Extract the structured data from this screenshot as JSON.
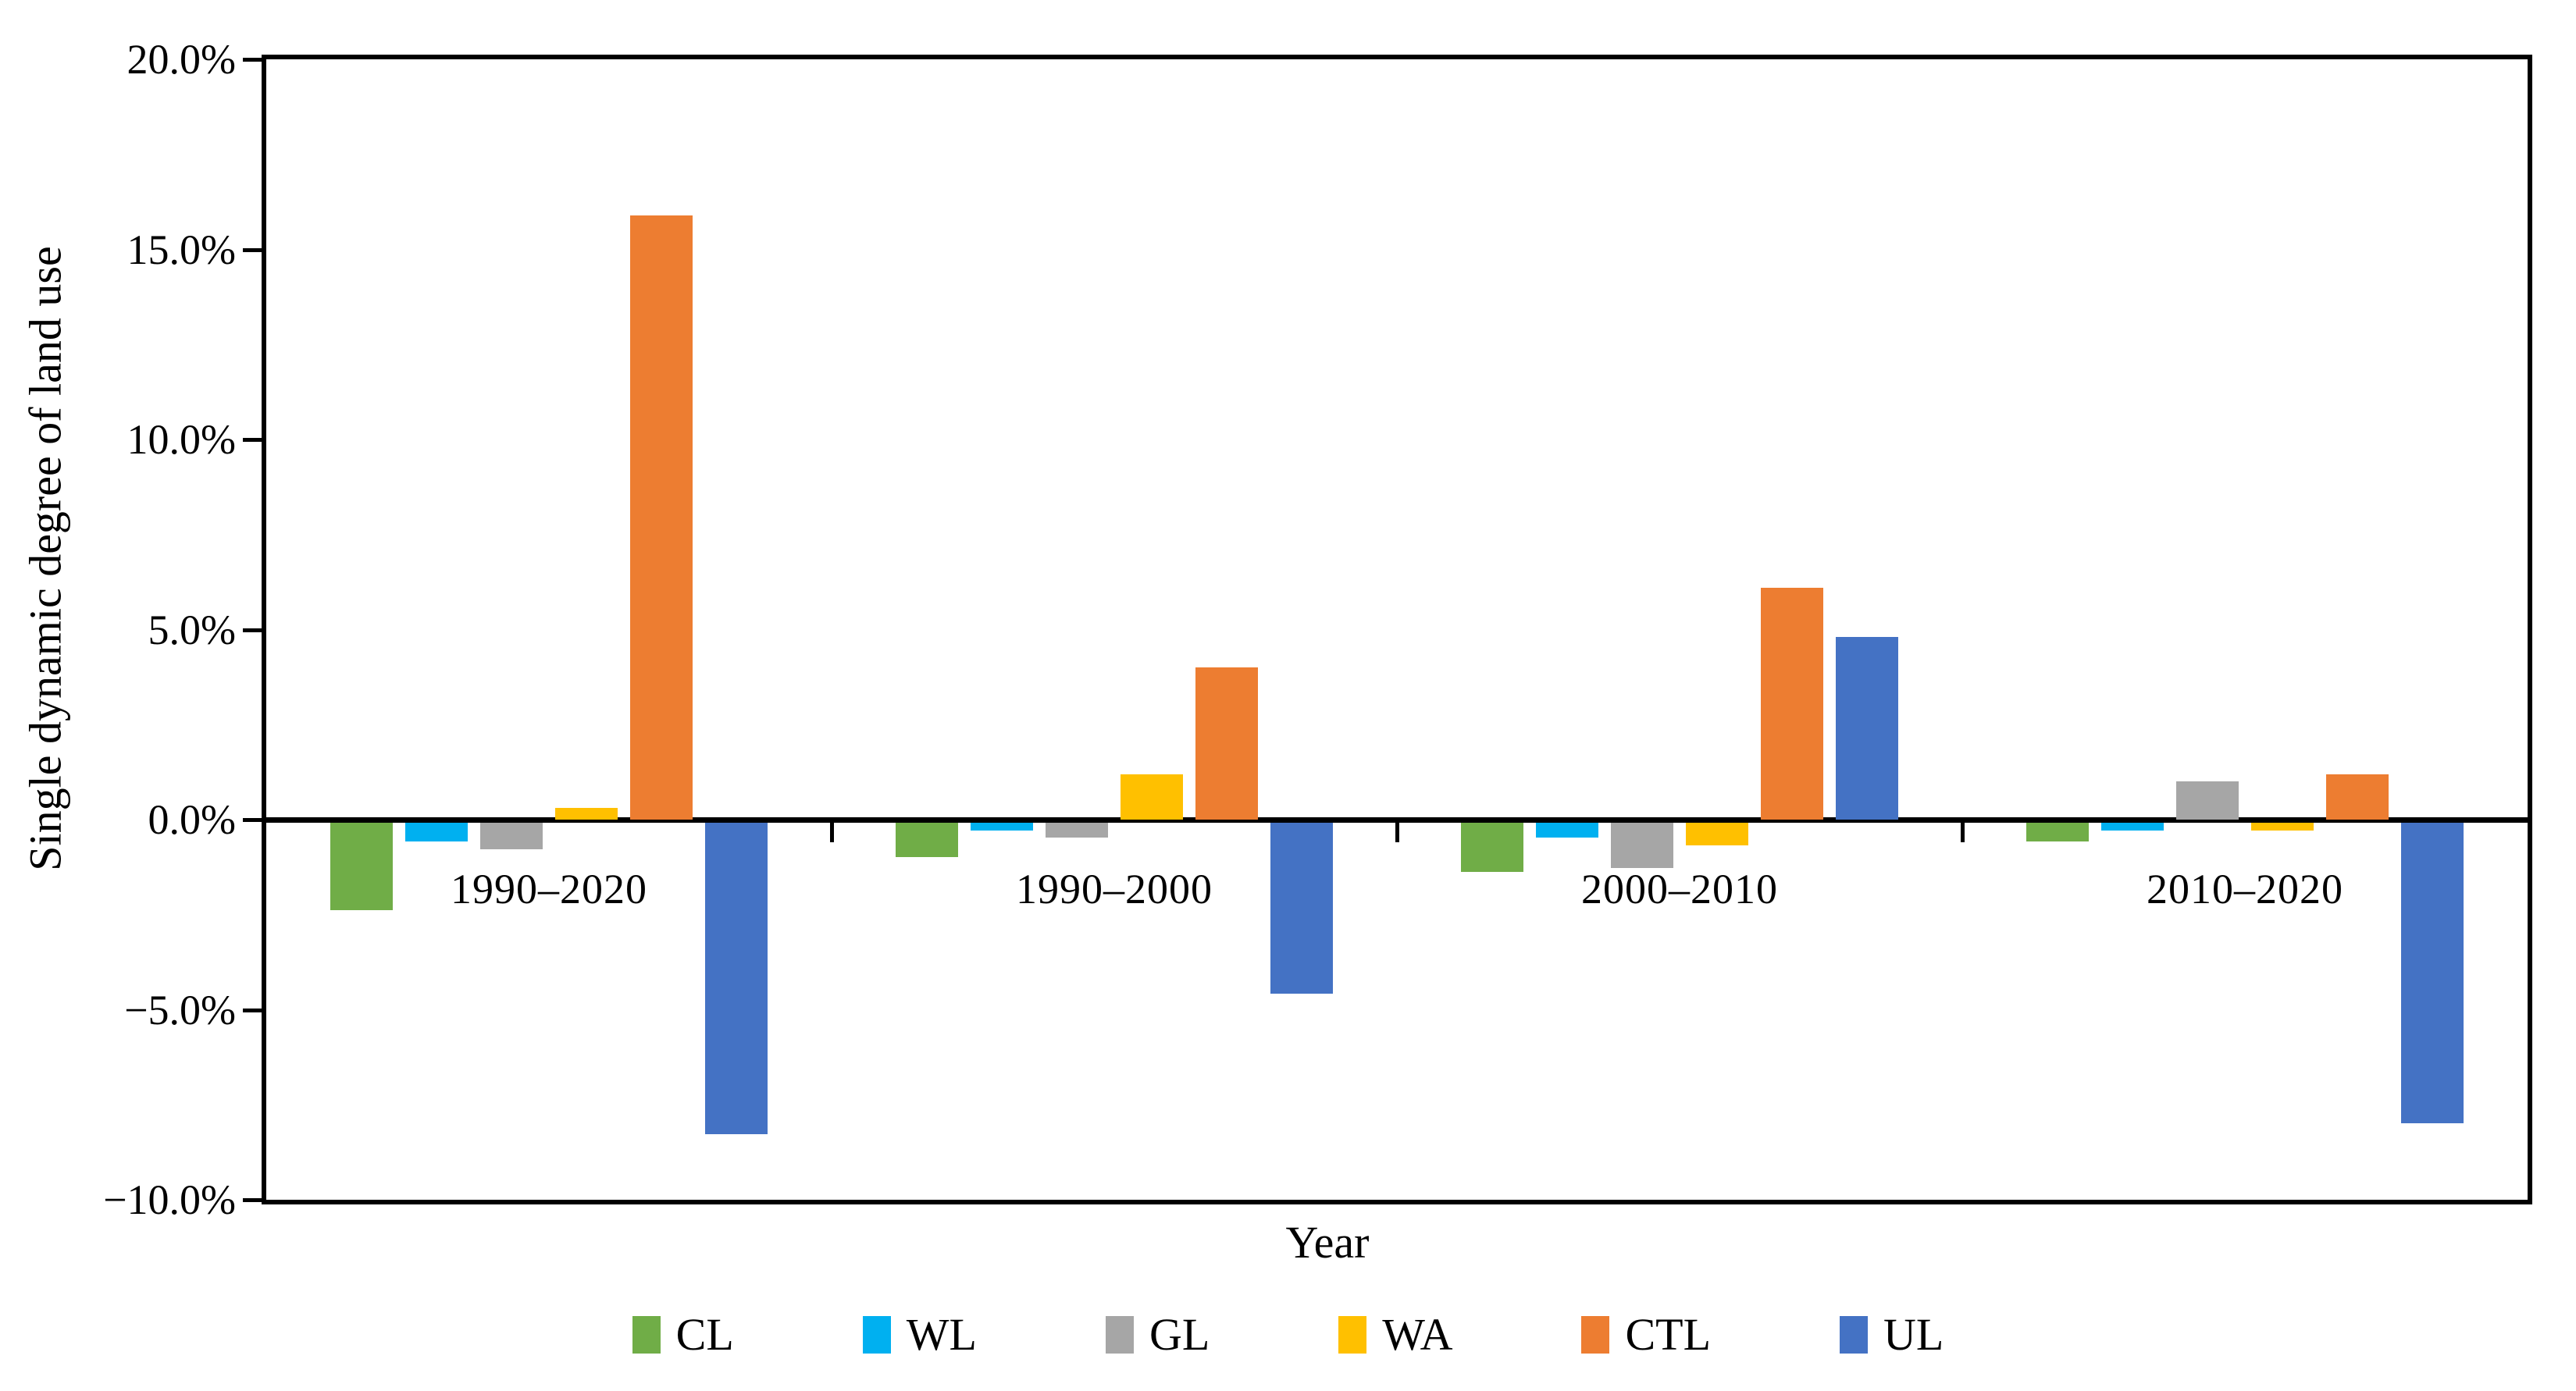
{
  "chart_data": {
    "type": "bar",
    "title": "",
    "ylabel": "Single dynamic degree of land use",
    "xlabel": "Year",
    "ylim": [
      -10,
      20
    ],
    "ytick_step": 5,
    "yticks": [
      {
        "value": 20,
        "label": "20.0%"
      },
      {
        "value": 15,
        "label": "15.0%"
      },
      {
        "value": 10,
        "label": "10.0%"
      },
      {
        "value": 5,
        "label": "5.0%"
      },
      {
        "value": 0,
        "label": "0.0%"
      },
      {
        "value": -5,
        "label": "−5.0%"
      },
      {
        "value": -10,
        "label": "−10.0%"
      }
    ],
    "categories": [
      "1990–2020",
      "1990–2000",
      "2000–2010",
      "2010–2020"
    ],
    "series": [
      {
        "name": "CL",
        "color": "#70AD47",
        "values": [
          -2.3,
          -0.9,
          -1.3,
          -0.5
        ]
      },
      {
        "name": "WL",
        "color": "#00B0F0",
        "values": [
          -0.5,
          -0.2,
          -0.4,
          -0.2
        ]
      },
      {
        "name": "GL",
        "color": "#A6A6A6",
        "values": [
          -0.7,
          -0.4,
          -1.2,
          1.0
        ]
      },
      {
        "name": "WA",
        "color": "#FFC000",
        "values": [
          0.3,
          1.2,
          -0.6,
          -0.2
        ]
      },
      {
        "name": "CTL",
        "color": "#ED7D31",
        "values": [
          15.9,
          4.0,
          6.1,
          1.2
        ]
      },
      {
        "name": "UL",
        "color": "#4472C4",
        "values": [
          -8.2,
          -4.5,
          4.8,
          -7.9
        ]
      }
    ],
    "legend_position": "bottom",
    "grid": false,
    "axis_color": "#000000"
  }
}
